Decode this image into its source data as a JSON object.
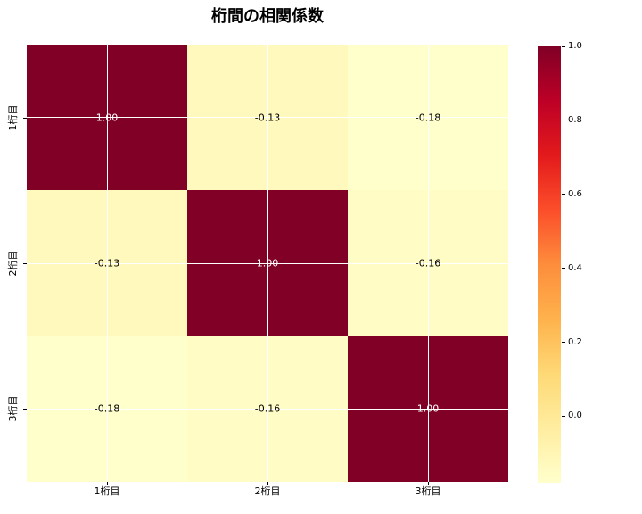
{
  "title": "桁間の相関係数",
  "chart_data": {
    "type": "heatmap",
    "title": "桁間の相関係数",
    "categories": [
      "1桁目",
      "2桁目",
      "3桁目"
    ],
    "x_tick_labels": [
      "1桁目",
      "2桁目",
      "3桁目"
    ],
    "y_tick_labels": [
      "1桁目",
      "2桁目",
      "3桁目"
    ],
    "matrix": [
      [
        1.0,
        -0.13,
        -0.18
      ],
      [
        -0.13,
        1.0,
        -0.16
      ],
      [
        -0.18,
        -0.16,
        1.0
      ]
    ],
    "cell_labels": [
      [
        "1.00",
        "-0.13",
        "-0.18"
      ],
      [
        "-0.13",
        "1.00",
        "-0.16"
      ],
      [
        "-0.18",
        "-0.16",
        "1.00"
      ]
    ],
    "cell_colors": [
      [
        "#800026",
        "#fff9bd",
        "#ffffcc"
      ],
      [
        "#fff9bd",
        "#800026",
        "#fffcc6"
      ],
      [
        "#ffffcc",
        "#fffcc6",
        "#800026"
      ]
    ],
    "cell_text_colors": [
      [
        "#ffffff",
        "#000000",
        "#000000"
      ],
      [
        "#000000",
        "#ffffff",
        "#000000"
      ],
      [
        "#000000",
        "#000000",
        "#ffffff"
      ]
    ],
    "vmin": -0.18,
    "vmax": 1.0,
    "colormap": "YlOrRd",
    "colormap_stops": [
      "#ffffcc",
      "#ffeda0",
      "#fed976",
      "#feb24c",
      "#fd8d3c",
      "#fc4e2a",
      "#e31a1c",
      "#bd0026",
      "#800026"
    ],
    "colorbar_ticks": [
      {
        "value": 1.0,
        "label": "1.0"
      },
      {
        "value": 0.8,
        "label": "0.8"
      },
      {
        "value": 0.6,
        "label": "0.6"
      },
      {
        "value": 0.4,
        "label": "0.4"
      },
      {
        "value": 0.2,
        "label": "0.2"
      },
      {
        "value": 0.0,
        "label": "0.0"
      }
    ],
    "grid": true,
    "grid_color": "#ffffff",
    "background": "#ffffff",
    "legend_position": "right-colorbar"
  }
}
